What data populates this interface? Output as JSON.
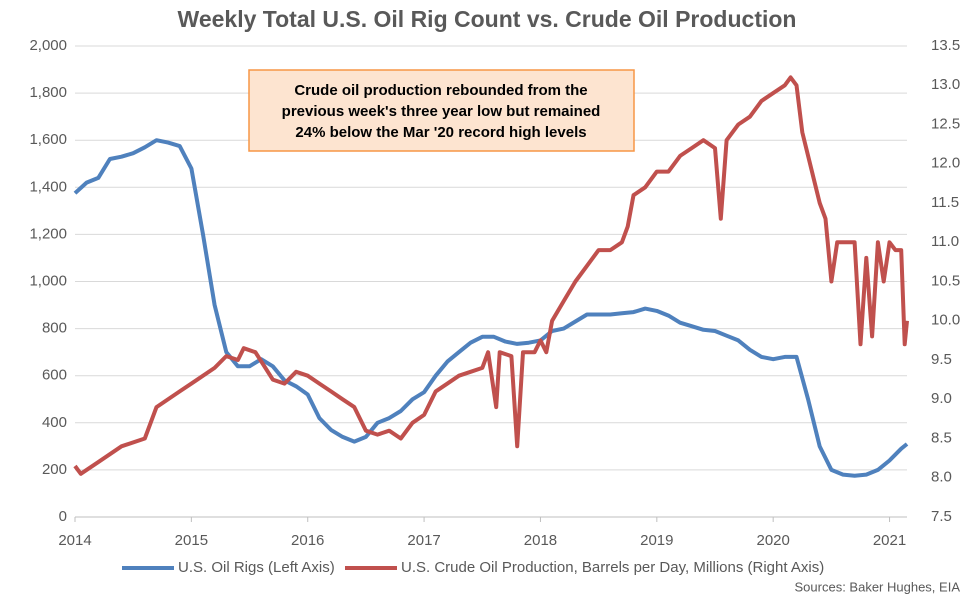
{
  "chart_data": {
    "type": "line",
    "title": "Weekly Total U.S. Oil Rig Count vs. Crude Oil Production",
    "annotation": [
      "Crude oil production rebounded from the",
      "previous week's three year low but remained",
      "24% below the Mar '20 record high levels"
    ],
    "source": "Sources: Baker Hughes, EIA",
    "xlim": [
      2014,
      2021.15
    ],
    "xticks": [
      2014,
      2015,
      2016,
      2017,
      2018,
      2019,
      2020,
      2021
    ],
    "ylim": [
      0,
      2000
    ],
    "yticks": [
      0,
      200,
      400,
      600,
      800,
      {
        "value": 1000,
        "label": "1,000"
      },
      {
        "value": 1200,
        "label": "1,200"
      },
      {
        "value": 1400,
        "label": "1,400"
      },
      {
        "value": 1600,
        "label": "1,600"
      },
      {
        "value": 1800,
        "label": "1,800"
      },
      {
        "value": 2000,
        "label": "2,000"
      }
    ],
    "y2lim": [
      7.5,
      13.5
    ],
    "y2ticks": [
      7.5,
      {
        "value": 8,
        "label": "8.0"
      },
      8.5,
      {
        "value": 9,
        "label": "9.0"
      },
      9.5,
      {
        "value": 10,
        "label": "10.0"
      },
      10.5,
      {
        "value": 11,
        "label": "11.0"
      },
      11.5,
      {
        "value": 12,
        "label": "12.0"
      },
      12.5,
      {
        "value": 13,
        "label": "13.0"
      },
      13.5
    ],
    "grid": true,
    "legend": "bottom",
    "series": [
      {
        "name": "U.S. Oil Rigs (Left Axis)",
        "color": "#4f81bd",
        "axis": "y",
        "x": [
          2014.0,
          2014.1,
          2014.2,
          2014.3,
          2014.4,
          2014.5,
          2014.6,
          2014.7,
          2014.8,
          2014.9,
          2015.0,
          2015.1,
          2015.2,
          2015.3,
          2015.4,
          2015.5,
          2015.6,
          2015.7,
          2015.8,
          2015.9,
          2016.0,
          2016.1,
          2016.2,
          2016.3,
          2016.4,
          2016.5,
          2016.6,
          2016.7,
          2016.8,
          2016.9,
          2017.0,
          2017.1,
          2017.2,
          2017.3,
          2017.4,
          2017.5,
          2017.6,
          2017.7,
          2017.8,
          2017.9,
          2018.0,
          2018.1,
          2018.2,
          2018.3,
          2018.4,
          2018.5,
          2018.6,
          2018.7,
          2018.8,
          2018.9,
          2019.0,
          2019.1,
          2019.2,
          2019.3,
          2019.4,
          2019.5,
          2019.6,
          2019.7,
          2019.8,
          2019.9,
          2020.0,
          2020.1,
          2020.2,
          2020.3,
          2020.4,
          2020.5,
          2020.6,
          2020.7,
          2020.8,
          2020.9,
          2021.0,
          2021.1,
          2021.15
        ],
        "values": [
          1375,
          1420,
          1440,
          1520,
          1530,
          1545,
          1570,
          1600,
          1590,
          1575,
          1480,
          1200,
          900,
          700,
          640,
          640,
          670,
          640,
          580,
          555,
          520,
          420,
          370,
          340,
          320,
          340,
          400,
          420,
          450,
          500,
          530,
          600,
          660,
          700,
          740,
          765,
          765,
          745,
          735,
          740,
          750,
          790,
          800,
          830,
          860,
          860,
          860,
          865,
          870,
          885,
          875,
          855,
          825,
          810,
          795,
          790,
          770,
          750,
          710,
          680,
          670,
          680,
          680,
          500,
          300,
          200,
          180,
          175,
          180,
          200,
          240,
          290,
          310
        ]
      },
      {
        "name": "U.S. Crude Oil Production, Barrels per Day, Millions (Right Axis)",
        "color": "#c0504d",
        "axis": "y2",
        "x": [
          2014.0,
          2014.05,
          2014.2,
          2014.4,
          2014.6,
          2014.7,
          2014.9,
          2015.0,
          2015.2,
          2015.3,
          2015.4,
          2015.45,
          2015.55,
          2015.7,
          2015.8,
          2015.9,
          2016.0,
          2016.1,
          2016.2,
          2016.3,
          2016.4,
          2016.5,
          2016.6,
          2016.7,
          2016.8,
          2016.9,
          2017.0,
          2017.1,
          2017.2,
          2017.3,
          2017.4,
          2017.5,
          2017.55,
          2017.62,
          2017.65,
          2017.75,
          2017.8,
          2017.85,
          2017.95,
          2018.0,
          2018.05,
          2018.1,
          2018.2,
          2018.3,
          2018.4,
          2018.5,
          2018.6,
          2018.7,
          2018.75,
          2018.8,
          2018.9,
          2019.0,
          2019.1,
          2019.2,
          2019.3,
          2019.4,
          2019.5,
          2019.55,
          2019.6,
          2019.7,
          2019.8,
          2019.9,
          2020.0,
          2020.1,
          2020.15,
          2020.2,
          2020.25,
          2020.3,
          2020.4,
          2020.45,
          2020.5,
          2020.55,
          2020.7,
          2020.75,
          2020.8,
          2020.85,
          2020.9,
          2020.95,
          2021.0,
          2021.05,
          2021.1,
          2021.13,
          2021.15
        ],
        "values": [
          8.15,
          8.05,
          8.2,
          8.4,
          8.5,
          8.9,
          9.1,
          9.2,
          9.4,
          9.55,
          9.5,
          9.65,
          9.6,
          9.25,
          9.2,
          9.35,
          9.3,
          9.2,
          9.1,
          9.0,
          8.9,
          8.6,
          8.55,
          8.6,
          8.5,
          8.7,
          8.8,
          9.1,
          9.2,
          9.3,
          9.35,
          9.4,
          9.6,
          8.9,
          9.6,
          9.55,
          8.4,
          9.6,
          9.6,
          9.75,
          9.6,
          10.0,
          10.25,
          10.5,
          10.7,
          10.9,
          10.9,
          11.0,
          11.2,
          11.6,
          11.7,
          11.9,
          11.9,
          12.1,
          12.2,
          12.3,
          12.2,
          11.3,
          12.3,
          12.5,
          12.6,
          12.8,
          12.9,
          13.0,
          13.1,
          13.0,
          12.4,
          12.1,
          11.5,
          11.3,
          10.5,
          11.0,
          11.0,
          9.7,
          10.8,
          9.8,
          11.0,
          10.5,
          11.0,
          10.9,
          10.9,
          9.7,
          10.0
        ]
      }
    ]
  }
}
